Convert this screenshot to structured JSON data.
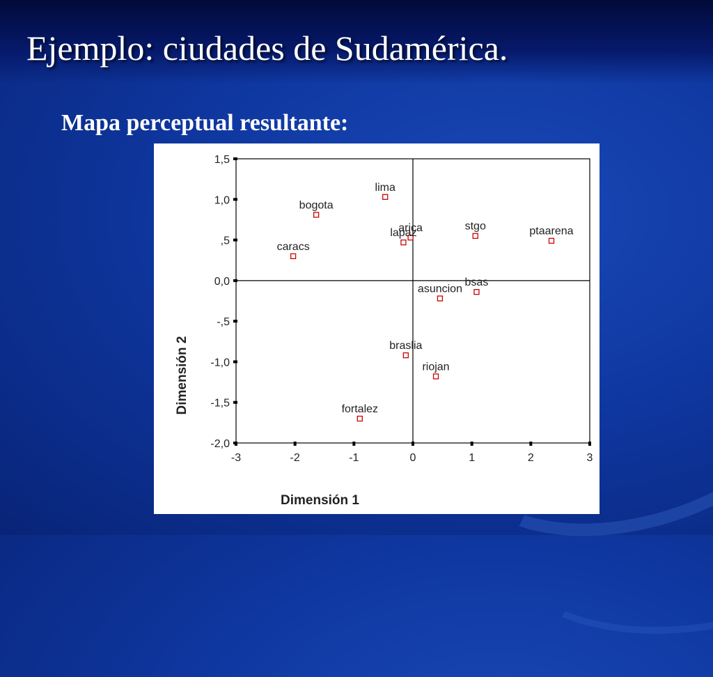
{
  "slide": {
    "title": "Ejemplo: ciudades de Sudamérica.",
    "subtitle": "Mapa perceptual resultante:"
  },
  "chart_data": {
    "type": "scatter",
    "title": "",
    "xlabel": "Dimensión 1",
    "ylabel": "Dimensión 2",
    "xlim": [
      -3,
      3
    ],
    "ylim": [
      -2.0,
      1.5
    ],
    "xticks": [
      {
        "value": -3,
        "label": "-3"
      },
      {
        "value": -2,
        "label": "-2"
      },
      {
        "value": -1,
        "label": "-1"
      },
      {
        "value": 0,
        "label": "0"
      },
      {
        "value": 1,
        "label": "1"
      },
      {
        "value": 2,
        "label": "2"
      },
      {
        "value": 3,
        "label": "3"
      }
    ],
    "yticks": [
      {
        "value": 1.5,
        "label": "1,5"
      },
      {
        "value": 1.0,
        "label": "1,0"
      },
      {
        "value": 0.5,
        "label": ",5"
      },
      {
        "value": 0.0,
        "label": "0,0"
      },
      {
        "value": -0.5,
        "label": "-,5"
      },
      {
        "value": -1.0,
        "label": "-1,0"
      },
      {
        "value": -1.5,
        "label": "-1,5"
      },
      {
        "value": -2.0,
        "label": "-2,0"
      }
    ],
    "grid": false,
    "reference_lines": {
      "x": 0,
      "y": 0
    },
    "marker_color": "#cc0000",
    "points": [
      {
        "label": "lima",
        "x": -0.47,
        "y": 1.03
      },
      {
        "label": "bogota",
        "x": -1.64,
        "y": 0.81
      },
      {
        "label": "arica",
        "x": -0.04,
        "y": 0.53
      },
      {
        "label": "lapaz",
        "x": -0.16,
        "y": 0.47
      },
      {
        "label": "stgo",
        "x": 1.06,
        "y": 0.55
      },
      {
        "label": "ptaarena",
        "x": 2.35,
        "y": 0.49
      },
      {
        "label": "caracs",
        "x": -2.03,
        "y": 0.3
      },
      {
        "label": "bsas",
        "x": 1.08,
        "y": -0.14
      },
      {
        "label": "asuncion",
        "x": 0.46,
        "y": -0.22
      },
      {
        "label": "braslia",
        "x": -0.12,
        "y": -0.92
      },
      {
        "label": "riojan",
        "x": 0.39,
        "y": -1.18
      },
      {
        "label": "fortalez",
        "x": -0.9,
        "y": -1.7
      }
    ]
  }
}
